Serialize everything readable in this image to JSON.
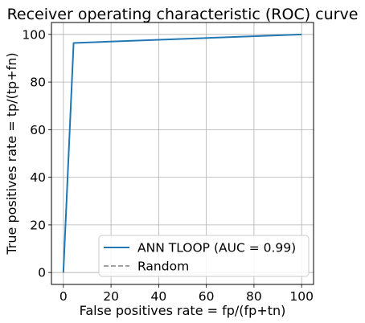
{
  "chart_data": {
    "type": "line",
    "title": "Receiver operating characteristic (ROC) curve",
    "xlabel": "False positives rate = fp/(fp+tn)",
    "ylabel": "True positives rate = tp/(tp+fn)",
    "xlim": [
      -5,
      105
    ],
    "ylim": [
      -5,
      105
    ],
    "xticks": [
      0,
      20,
      40,
      60,
      80,
      100
    ],
    "yticks": [
      0,
      20,
      40,
      60,
      80,
      100
    ],
    "grid": true,
    "legend_position": "lower right",
    "series": [
      {
        "name": "ANN TLOOP (AUC = 0.99)",
        "color": "#1f77b4",
        "style": "solid",
        "x": [
          0,
          4.3,
          100
        ],
        "y": [
          0,
          96.4,
          100
        ]
      },
      {
        "name": "Random",
        "color": "#808080",
        "style": "dashed",
        "x": [
          0,
          0.1
        ],
        "y": [
          0,
          0.1
        ]
      }
    ]
  }
}
